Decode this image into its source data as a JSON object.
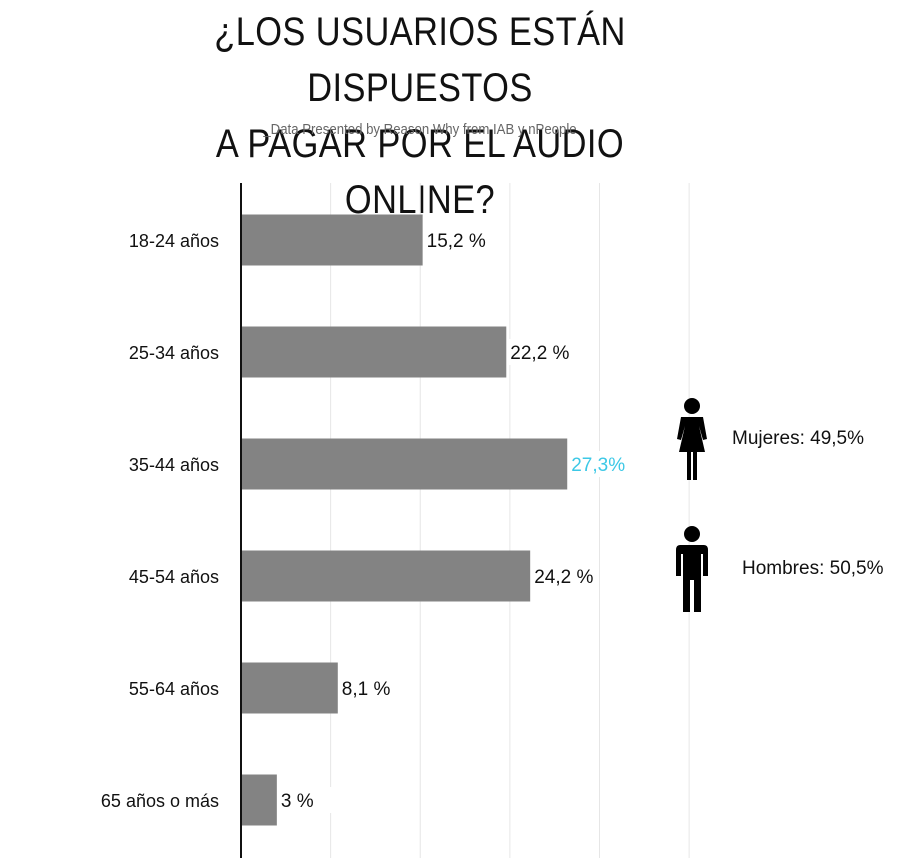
{
  "title_line1": "¿LOS USUARIOS ESTÁN DISPUESTOS",
  "title_line2": "A PAGAR POR EL AUDIO ONLINE?",
  "subtitle": "_Data Presented by Reason Why from IAB y nPeople",
  "colors": {
    "bar": "#838383",
    "highlight": "#3cc8e6",
    "grid": "#e6e6e6",
    "axis": "#111111",
    "text": "#111111"
  },
  "chart_data": {
    "type": "bar",
    "orientation": "horizontal",
    "title": "¿LOS USUARIOS ESTÁN DISPUESTOS A PAGAR POR EL AUDIO ONLINE?",
    "categories": [
      "18-24 años",
      "25-34 años",
      "35-44 años",
      "45-54 años",
      "55-64 años",
      "65 años o más"
    ],
    "values": [
      15.2,
      22.2,
      27.3,
      24.2,
      8.1,
      3
    ],
    "value_labels": [
      "15,2 %",
      "22,2 %",
      "27,3%",
      "24,2 %",
      "8,1 %",
      "3 %"
    ],
    "highlight_index": 2,
    "xlim": [
      0,
      40
    ],
    "grid": true
  },
  "gender": {
    "women": {
      "label": "Mujeres: 49,5%",
      "icon": "woman-icon"
    },
    "men": {
      "label": "Hombres: 50,5%",
      "icon": "man-icon"
    }
  }
}
